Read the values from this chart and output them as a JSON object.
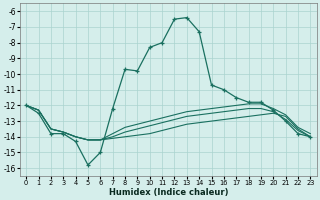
{
  "xlabel": "Humidex (Indice chaleur)",
  "background_color": "#d5eeeb",
  "grid_color": "#aad4cf",
  "line_color": "#1a7060",
  "xlim": [
    -0.5,
    23.5
  ],
  "ylim": [
    -16.5,
    -5.5
  ],
  "xticks": [
    0,
    1,
    2,
    3,
    4,
    5,
    6,
    7,
    8,
    9,
    10,
    11,
    12,
    13,
    14,
    15,
    16,
    17,
    18,
    19,
    20,
    21,
    22,
    23
  ],
  "yticks": [
    -6,
    -7,
    -8,
    -9,
    -10,
    -11,
    -12,
    -13,
    -14,
    -15,
    -16
  ],
  "series_main": {
    "x": [
      0,
      1,
      2,
      3,
      4,
      5,
      6,
      7,
      8,
      9,
      10,
      11,
      12,
      13,
      14,
      15,
      16,
      17,
      18,
      19,
      20,
      21,
      22,
      23
    ],
    "y": [
      -12.0,
      -12.5,
      -13.8,
      -13.8,
      -14.3,
      -15.8,
      -15.0,
      -12.2,
      -9.7,
      -9.8,
      -8.3,
      -8.0,
      -6.5,
      -6.4,
      -7.3,
      -10.7,
      -11.0,
      -11.5,
      -11.8,
      -11.8,
      -12.3,
      -13.0,
      -13.8,
      -14.0
    ]
  },
  "series_flat": [
    {
      "x": [
        0,
        1,
        2,
        3,
        4,
        5,
        6,
        7,
        8,
        9,
        10,
        11,
        12,
        13,
        14,
        15,
        16,
        17,
        18,
        19,
        20,
        21,
        22,
        23
      ],
      "y": [
        -12.0,
        -12.3,
        -13.5,
        -13.7,
        -14.0,
        -14.2,
        -14.2,
        -14.1,
        -14.0,
        -13.9,
        -13.8,
        -13.6,
        -13.4,
        -13.2,
        -13.1,
        -13.0,
        -12.9,
        -12.8,
        -12.7,
        -12.6,
        -12.5,
        -12.7,
        -13.5,
        -14.0
      ]
    },
    {
      "x": [
        0,
        1,
        2,
        3,
        4,
        5,
        6,
        7,
        8,
        9,
        10,
        11,
        12,
        13,
        14,
        15,
        16,
        17,
        18,
        19,
        20,
        21,
        22,
        23
      ],
      "y": [
        -12.0,
        -12.3,
        -13.5,
        -13.7,
        -14.0,
        -14.2,
        -14.2,
        -14.0,
        -13.7,
        -13.5,
        -13.3,
        -13.1,
        -12.9,
        -12.7,
        -12.6,
        -12.5,
        -12.4,
        -12.3,
        -12.2,
        -12.2,
        -12.4,
        -12.9,
        -13.6,
        -14.0
      ]
    },
    {
      "x": [
        0,
        1,
        2,
        3,
        4,
        5,
        6,
        7,
        8,
        9,
        10,
        11,
        12,
        13,
        14,
        15,
        16,
        17,
        18,
        19,
        20,
        21,
        22,
        23
      ],
      "y": [
        -12.0,
        -12.3,
        -13.5,
        -13.7,
        -14.0,
        -14.2,
        -14.2,
        -13.8,
        -13.4,
        -13.2,
        -13.0,
        -12.8,
        -12.6,
        -12.4,
        -12.3,
        -12.2,
        -12.1,
        -12.0,
        -11.9,
        -11.9,
        -12.2,
        -12.6,
        -13.4,
        -13.8
      ]
    }
  ]
}
